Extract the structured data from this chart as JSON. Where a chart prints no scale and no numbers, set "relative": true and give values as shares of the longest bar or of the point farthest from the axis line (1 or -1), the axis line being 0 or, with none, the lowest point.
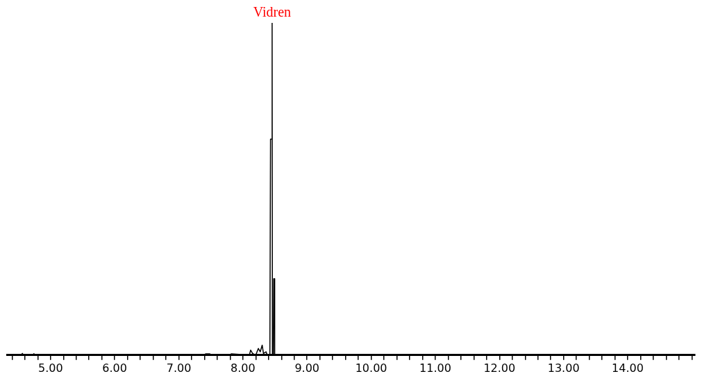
{
  "chart_data": {
    "type": "line",
    "relative": true,
    "color": "#000000",
    "marker": "none",
    "grid": false,
    "legend": false,
    "tick_labels": "x",
    "annotations": [
      {
        "text": "Vidren",
        "x": 8.455,
        "y": 1
      }
    ],
    "xlim": [
      4.32,
      15.05
    ],
    "xticks": [
      {
        "value": 4.4,
        "label": null
      },
      {
        "value": 4.6,
        "label": null
      },
      {
        "value": 4.8,
        "label": null
      },
      {
        "value": 5,
        "label": "5.00"
      },
      {
        "value": 5.2,
        "label": null
      },
      {
        "value": 5.4,
        "label": null
      },
      {
        "value": 5.6,
        "label": null
      },
      {
        "value": 5.8,
        "label": null
      },
      {
        "value": 6,
        "label": "6.00"
      },
      {
        "value": 6.2,
        "label": null
      },
      {
        "value": 6.4,
        "label": null
      },
      {
        "value": 6.6,
        "label": null
      },
      {
        "value": 6.8,
        "label": null
      },
      {
        "value": 7,
        "label": "7.00"
      },
      {
        "value": 7.2,
        "label": null
      },
      {
        "value": 7.4,
        "label": null
      },
      {
        "value": 7.6,
        "label": null
      },
      {
        "value": 7.8,
        "label": null
      },
      {
        "value": 8,
        "label": "8.00"
      },
      {
        "value": 8.2,
        "label": null
      },
      {
        "value": 8.4,
        "label": null
      },
      {
        "value": 8.6,
        "label": null
      },
      {
        "value": 8.8,
        "label": null
      },
      {
        "value": 9,
        "label": "9.00"
      },
      {
        "value": 9.2,
        "label": null
      },
      {
        "value": 9.4,
        "label": null
      },
      {
        "value": 9.6,
        "label": null
      },
      {
        "value": 9.8,
        "label": null
      },
      {
        "value": 10,
        "label": "10.00"
      },
      {
        "value": 10.2,
        "label": null
      },
      {
        "value": 10.4,
        "label": null
      },
      {
        "value": 10.6,
        "label": null
      },
      {
        "value": 10.8,
        "label": null
      },
      {
        "value": 11,
        "label": "11.00"
      },
      {
        "value": 11.2,
        "label": null
      },
      {
        "value": 11.4,
        "label": null
      },
      {
        "value": 11.6,
        "label": null
      },
      {
        "value": 11.8,
        "label": null
      },
      {
        "value": 12,
        "label": "12.00"
      },
      {
        "value": 12.2,
        "label": null
      },
      {
        "value": 12.4,
        "label": null
      },
      {
        "value": 12.6,
        "label": null
      },
      {
        "value": 12.8,
        "label": null
      },
      {
        "value": 13,
        "label": "13.00"
      },
      {
        "value": 13.2,
        "label": null
      },
      {
        "value": 13.4,
        "label": null
      },
      {
        "value": 13.6,
        "label": null
      },
      {
        "value": 13.8,
        "label": null
      },
      {
        "value": 14,
        "label": "14.00"
      },
      {
        "value": 14.2,
        "label": null
      },
      {
        "value": 14.4,
        "label": null
      },
      {
        "value": 14.6,
        "label": null
      },
      {
        "value": 14.8,
        "label": null
      },
      {
        "value": 15,
        "label": null
      }
    ],
    "x": [
      4.32,
      4.54,
      4.56,
      4.58,
      4.72,
      4.74,
      4.76,
      7.4,
      7.42,
      7.48,
      7.52,
      7.8,
      7.82,
      8.1,
      8.12,
      8.15,
      8.2,
      8.24,
      8.27,
      8.3,
      8.32,
      8.36,
      8.38,
      8.42,
      8.43,
      8.45,
      8.455,
      8.46,
      8.475,
      8.48,
      8.49,
      8.495,
      15.05
    ],
    "values": [
      0,
      0,
      0.005,
      0,
      0,
      0.004,
      0,
      0,
      0.004,
      0.004,
      0,
      0,
      0.004,
      0,
      0.015,
      0.005,
      0,
      0.02,
      0.01,
      0.03,
      0.005,
      0.01,
      0,
      0,
      0.65,
      0.65,
      1,
      0,
      0,
      0.23,
      0.23,
      0,
      0
    ]
  }
}
